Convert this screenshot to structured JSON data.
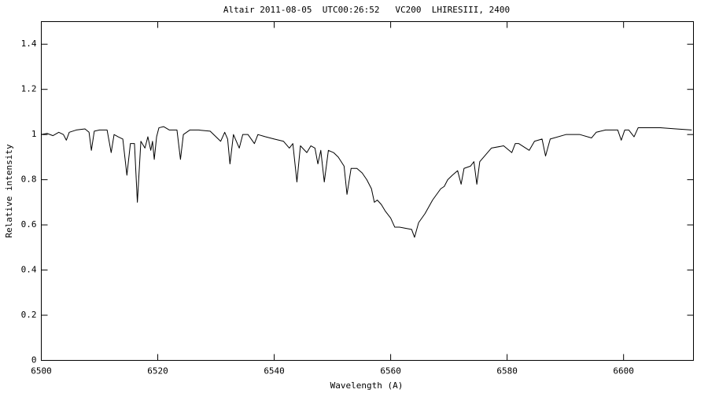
{
  "chart_data": {
    "type": "line",
    "title": "Altair 2011-08-05  UTC00:26:52   VC200  LHIRESIII, 2400",
    "x_label": "Wavelength (A)",
    "y_label": "Relative intensity",
    "xlim": [
      6500,
      6612
    ],
    "ylim": [
      0,
      1.5
    ],
    "xticks": [
      6500,
      6520,
      6540,
      6560,
      6580,
      6600
    ],
    "yticks": [
      0,
      0.2,
      0.4,
      0.6,
      0.8,
      1,
      1.2,
      1.4
    ],
    "grid": false,
    "series": [
      {
        "color": "#000000",
        "x": [
          6500,
          6501,
          6502,
          6503,
          6503.8,
          6504.3,
          6504.8,
          6506,
          6507.5,
          6508.2,
          6508.6,
          6509.1,
          6510,
          6511.3,
          6512.0,
          6512.5,
          6513.2,
          6514.0,
          6514.7,
          6515.3,
          6516.0,
          6516.5,
          6517.1,
          6517.8,
          6518.3,
          6518.8,
          6519.1,
          6519.4,
          6519.8,
          6520.2,
          6521,
          6522,
          6523.3,
          6523.9,
          6524.4,
          6525.5,
          6527,
          6529,
          6530.8,
          6531.5,
          6532.0,
          6532.4,
          6533.0,
          6534.0,
          6534.6,
          6535.5,
          6536.6,
          6537.2,
          6538.5,
          6540,
          6541.6,
          6542.6,
          6543.2,
          6543.9,
          6544.5,
          6545.6,
          6546.3,
          6547.0,
          6547.5,
          6548.0,
          6548.6,
          6549.3,
          6550.2,
          6551.0,
          6552.0,
          6552.5,
          6553.2,
          6554.2,
          6555.1,
          6555.9,
          6556.7,
          6557.2,
          6557.7,
          6558.4,
          6559.1,
          6560.0,
          6560.7,
          6561.5,
          6562.5,
          6563.6,
          6564.1,
          6564.8,
          6565.9,
          6567.2,
          6568.6,
          6569.2,
          6569.8,
          6570.6,
          6571.5,
          6572.1,
          6572.6,
          6573.7,
          6574.3,
          6574.8,
          6575.3,
          6577.3,
          6579.4,
          6580.8,
          6581.4,
          6582.0,
          6583.8,
          6584.7,
          6586.0,
          6586.6,
          6587.4,
          6590.1,
          6592.5,
          6594.5,
          6595.3,
          6596.9,
          6599.0,
          6599.6,
          6600.2,
          6600.9,
          6601.8,
          6602.5,
          6603.6,
          6606.3,
          6609.0,
          6611.7
        ],
        "values": [
          1.0,
          1.005,
          0.995,
          1.01,
          1.0,
          0.975,
          1.01,
          1.02,
          1.025,
          1.01,
          0.93,
          1.015,
          1.02,
          1.02,
          0.92,
          1.0,
          0.99,
          0.98,
          0.82,
          0.96,
          0.96,
          0.7,
          0.97,
          0.94,
          0.99,
          0.93,
          0.97,
          0.89,
          0.99,
          1.03,
          1.035,
          1.02,
          1.02,
          0.89,
          1.0,
          1.02,
          1.02,
          1.015,
          0.97,
          1.01,
          0.98,
          0.87,
          1.0,
          0.94,
          1.0,
          1.0,
          0.96,
          1.0,
          0.99,
          0.98,
          0.97,
          0.94,
          0.96,
          0.79,
          0.95,
          0.92,
          0.95,
          0.94,
          0.87,
          0.93,
          0.79,
          0.93,
          0.92,
          0.9,
          0.86,
          0.735,
          0.85,
          0.85,
          0.83,
          0.8,
          0.76,
          0.7,
          0.71,
          0.69,
          0.66,
          0.63,
          0.59,
          0.59,
          0.585,
          0.58,
          0.545,
          0.61,
          0.65,
          0.71,
          0.76,
          0.77,
          0.8,
          0.82,
          0.84,
          0.78,
          0.85,
          0.86,
          0.88,
          0.78,
          0.88,
          0.94,
          0.95,
          0.92,
          0.96,
          0.96,
          0.93,
          0.97,
          0.98,
          0.905,
          0.98,
          1.0,
          1.0,
          0.985,
          1.01,
          1.02,
          1.02,
          0.975,
          1.02,
          1.02,
          0.99,
          1.03,
          1.03,
          1.03,
          1.025,
          1.02
        ]
      }
    ]
  }
}
